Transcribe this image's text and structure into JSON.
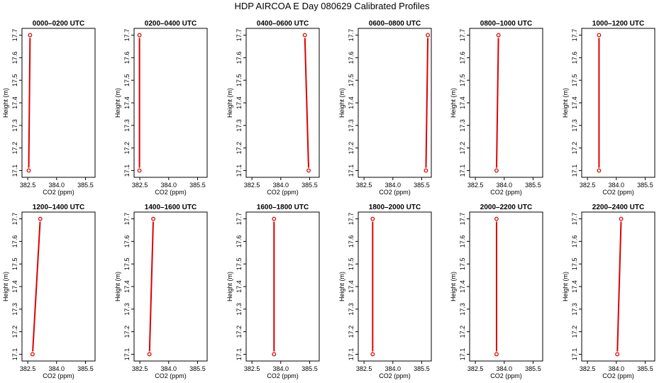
{
  "figure": {
    "title": "HDP AIRCOA E  Day 080629  Calibrated Profiles"
  },
  "style": {
    "line_color": "#dd0000",
    "axis_color": "#000000",
    "background": "#ffffff"
  },
  "chart_data": [
    {
      "type": "line",
      "title": "0000–0200 UTC",
      "xlabel": "CO2 (ppm)",
      "ylabel": "Height (m)",
      "xlim": [
        382.2,
        386.0
      ],
      "ylim": [
        17.07,
        17.73
      ],
      "xticks": [
        "382.5",
        "384.0",
        "385.5"
      ],
      "yticks": [
        "17.1",
        "17.2",
        "17.3",
        "17.4",
        "17.5",
        "17.6",
        "17.7"
      ],
      "x": [
        382.55,
        382.62
      ],
      "y": [
        17.1,
        17.7
      ]
    },
    {
      "type": "line",
      "title": "0200–0400 UTC",
      "xlabel": "CO2 (ppm)",
      "ylabel": "Height (m)",
      "xlim": [
        382.2,
        386.0
      ],
      "ylim": [
        17.07,
        17.73
      ],
      "xticks": [
        "382.5",
        "384.0",
        "385.5"
      ],
      "yticks": [
        "17.1",
        "17.2",
        "17.3",
        "17.4",
        "17.5",
        "17.6",
        "17.7"
      ],
      "x": [
        382.48,
        382.48
      ],
      "y": [
        17.1,
        17.7
      ]
    },
    {
      "type": "line",
      "title": "0400–0600 UTC",
      "xlabel": "CO2 (ppm)",
      "ylabel": "Height (m)",
      "xlim": [
        382.2,
        386.0
      ],
      "ylim": [
        17.07,
        17.73
      ],
      "xticks": [
        "382.5",
        "384.0",
        "385.5"
      ],
      "yticks": [
        "17.1",
        "17.2",
        "17.3",
        "17.4",
        "17.5",
        "17.6",
        "17.7"
      ],
      "x": [
        385.45,
        385.25
      ],
      "y": [
        17.1,
        17.7
      ]
    },
    {
      "type": "line",
      "title": "0600–0800 UTC",
      "xlabel": "CO2 (ppm)",
      "ylabel": "Height (m)",
      "xlim": [
        382.2,
        386.0
      ],
      "ylim": [
        17.07,
        17.73
      ],
      "xticks": [
        "382.5",
        "384.0",
        "385.5"
      ],
      "yticks": [
        "17.1",
        "17.2",
        "17.3",
        "17.4",
        "17.5",
        "17.6",
        "17.7"
      ],
      "x": [
        385.72,
        385.82
      ],
      "y": [
        17.1,
        17.7
      ]
    },
    {
      "type": "line",
      "title": "0800–1000 UTC",
      "xlabel": "CO2 (ppm)",
      "ylabel": "Height (m)",
      "xlim": [
        382.2,
        386.0
      ],
      "ylim": [
        17.07,
        17.73
      ],
      "xticks": [
        "382.5",
        "384.0",
        "385.5"
      ],
      "yticks": [
        "17.1",
        "17.2",
        "17.3",
        "17.4",
        "17.5",
        "17.6",
        "17.7"
      ],
      "x": [
        383.6,
        383.7
      ],
      "y": [
        17.1,
        17.7
      ]
    },
    {
      "type": "line",
      "title": "1000–1200 UTC",
      "xlabel": "CO2 (ppm)",
      "ylabel": "Height (m)",
      "xlim": [
        382.2,
        386.0
      ],
      "ylim": [
        17.07,
        17.73
      ],
      "xticks": [
        "382.5",
        "384.0",
        "385.5"
      ],
      "yticks": [
        "17.1",
        "17.2",
        "17.3",
        "17.4",
        "17.5",
        "17.6",
        "17.7"
      ],
      "x": [
        383.1,
        383.1
      ],
      "y": [
        17.1,
        17.7
      ]
    },
    {
      "type": "line",
      "title": "1200–1400 UTC",
      "xlabel": "CO2 (ppm)",
      "ylabel": "Height (m)",
      "xlim": [
        382.2,
        386.0
      ],
      "ylim": [
        17.07,
        17.73
      ],
      "xticks": [
        "382.5",
        "384.0",
        "385.5"
      ],
      "yticks": [
        "17.1",
        "17.2",
        "17.3",
        "17.4",
        "17.5",
        "17.6",
        "17.7"
      ],
      "x": [
        382.75,
        383.15
      ],
      "y": [
        17.1,
        17.7
      ]
    },
    {
      "type": "line",
      "title": "1400–1600 UTC",
      "xlabel": "CO2 (ppm)",
      "ylabel": "Height (m)",
      "xlim": [
        382.2,
        386.0
      ],
      "ylim": [
        17.07,
        17.73
      ],
      "xticks": [
        "382.5",
        "384.0",
        "385.5"
      ],
      "yticks": [
        "17.1",
        "17.2",
        "17.3",
        "17.4",
        "17.5",
        "17.6",
        "17.7"
      ],
      "x": [
        383.0,
        383.2
      ],
      "y": [
        17.1,
        17.7
      ]
    },
    {
      "type": "line",
      "title": "1600–1800 UTC",
      "xlabel": "CO2 (ppm)",
      "ylabel": "Height (m)",
      "xlim": [
        382.2,
        386.0
      ],
      "ylim": [
        17.07,
        17.73
      ],
      "xticks": [
        "382.5",
        "384.0",
        "385.5"
      ],
      "yticks": [
        "17.1",
        "17.2",
        "17.3",
        "17.4",
        "17.5",
        "17.6",
        "17.7"
      ],
      "x": [
        383.65,
        383.65
      ],
      "y": [
        17.1,
        17.7
      ]
    },
    {
      "type": "line",
      "title": "1800–2000 UTC",
      "xlabel": "CO2 (ppm)",
      "ylabel": "Height (m)",
      "xlim": [
        382.2,
        386.0
      ],
      "ylim": [
        17.07,
        17.73
      ],
      "xticks": [
        "382.5",
        "384.0",
        "385.5"
      ],
      "yticks": [
        "17.1",
        "17.2",
        "17.3",
        "17.4",
        "17.5",
        "17.6",
        "17.7"
      ],
      "x": [
        382.95,
        382.95
      ],
      "y": [
        17.1,
        17.7
      ]
    },
    {
      "type": "line",
      "title": "2000–2200 UTC",
      "xlabel": "CO2 (ppm)",
      "ylabel": "Height (m)",
      "xlim": [
        382.2,
        386.0
      ],
      "ylim": [
        17.07,
        17.73
      ],
      "xticks": [
        "382.5",
        "384.0",
        "385.5"
      ],
      "yticks": [
        "17.1",
        "17.2",
        "17.3",
        "17.4",
        "17.5",
        "17.6",
        "17.7"
      ],
      "x": [
        383.6,
        383.6
      ],
      "y": [
        17.1,
        17.7
      ]
    },
    {
      "type": "line",
      "title": "2200–2400 UTC",
      "xlabel": "CO2 (ppm)",
      "ylabel": "Height (m)",
      "xlim": [
        382.2,
        386.0
      ],
      "ylim": [
        17.07,
        17.73
      ],
      "xticks": [
        "382.5",
        "384.0",
        "385.5"
      ],
      "yticks": [
        "17.1",
        "17.2",
        "17.3",
        "17.4",
        "17.5",
        "17.6",
        "17.7"
      ],
      "x": [
        384.05,
        384.25
      ],
      "y": [
        17.1,
        17.7
      ]
    }
  ]
}
